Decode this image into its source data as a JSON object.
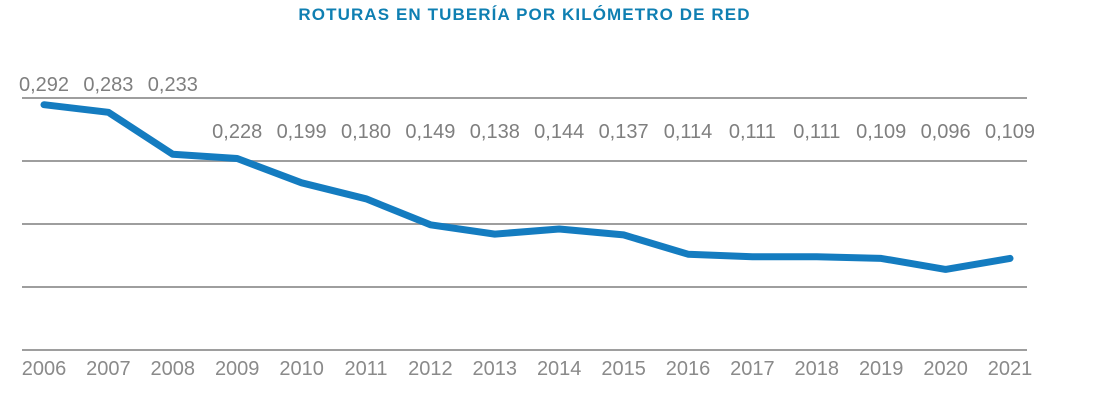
{
  "title": "ROTURAS EN TUBERÍA POR KILÓMETRO DE RED",
  "colors": {
    "title": "#0F7FB2",
    "line": "#147CC0",
    "grid": "#9E9E9E",
    "axis": "#9E9E9E",
    "value_label": "#7F7F7F",
    "year_label": "#8A8A8A"
  },
  "chart_data": {
    "type": "line",
    "title": "ROTURAS EN TUBERÍA POR KILÓMETRO DE RED",
    "x": [
      2006,
      2007,
      2008,
      2009,
      2010,
      2011,
      2012,
      2013,
      2014,
      2015,
      2016,
      2017,
      2018,
      2019,
      2020,
      2021
    ],
    "values": [
      0.292,
      0.283,
      0.233,
      0.228,
      0.199,
      0.18,
      0.149,
      0.138,
      0.144,
      0.137,
      0.114,
      0.111,
      0.111,
      0.109,
      0.096,
      0.109
    ],
    "labels": [
      "0,292",
      "0,283",
      "0,233",
      "0,228",
      "0,199",
      "0,180",
      "0,149",
      "0,138",
      "0,144",
      "0,137",
      "0,114",
      "0,111",
      "0,111",
      "0,109",
      "0,096",
      "0,109"
    ],
    "xlabel": "",
    "ylabel": "",
    "ylim": [
      0,
      0.3
    ],
    "grid_step": 0.075,
    "grid": "horizontal-only",
    "legend": "none",
    "decimal_separator": ",",
    "series_name": "Roturas en tubería por kilómetro de red"
  }
}
